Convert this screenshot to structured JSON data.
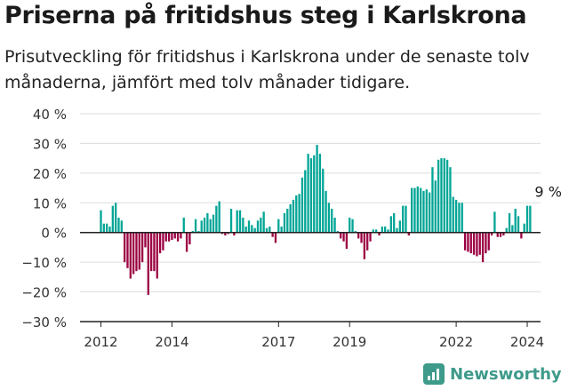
{
  "title": "Priserna på fritidshus steg i Karlskrona",
  "subtitle": "Prisutveckling för fritidshus i Karlskrona under de senaste tolv månaderna, jämfört med tolv månader tidigare.",
  "brand": "Newsworthy",
  "colors": {
    "positive": "#00a596",
    "negative": "#9c0042",
    "brand": "#3e9a8a"
  },
  "chart_data": {
    "type": "bar",
    "ylim": [
      -30,
      40
    ],
    "yticks": [
      "40 %",
      "30 %",
      "20 %",
      "10 %",
      "0 %",
      "−10 %",
      "−20 %",
      "−30 %"
    ],
    "ytick_values": [
      40,
      30,
      20,
      10,
      0,
      -10,
      -20,
      -30
    ],
    "x_start": "2011-09",
    "x_labels": [
      {
        "label": "2012",
        "index": 0
      },
      {
        "label": "2014",
        "index": 24
      },
      {
        "label": "2017",
        "index": 60
      },
      {
        "label": "2019",
        "index": 84
      },
      {
        "label": "2022",
        "index": 120
      },
      {
        "label": "2024",
        "index": 144
      }
    ],
    "annotation": {
      "text": "9 %",
      "index": 152
    },
    "values": [
      7.5,
      3,
      3,
      2,
      9,
      10,
      5,
      4,
      -10,
      -12,
      -15.5,
      -14,
      -13,
      -12.5,
      -10,
      -5,
      -21,
      -13,
      -13,
      -15.5,
      -7,
      -6,
      -3,
      -3,
      -2.5,
      -2,
      -3,
      -2,
      5,
      -6.5,
      -4,
      0.5,
      4.5,
      0.5,
      4,
      5,
      6.5,
      4.5,
      6,
      9,
      10.5,
      -0.5,
      -1,
      -0.5,
      8,
      -1,
      7.5,
      7.5,
      5,
      2,
      4,
      2.5,
      1.5,
      4,
      5,
      7,
      1.5,
      2,
      -1.5,
      -3.5,
      4.5,
      2,
      6.5,
      8,
      9.5,
      11,
      12.5,
      13,
      18.5,
      21,
      26.5,
      25,
      26,
      29.5,
      26.5,
      21.5,
      14,
      10,
      8,
      5,
      0.5,
      -2,
      -3,
      -5.5,
      5,
      4.5,
      0.5,
      -2,
      -3.5,
      -9,
      -6,
      -3,
      1,
      1,
      -1,
      2,
      2,
      1,
      5.5,
      6.5,
      1.5,
      4,
      9,
      9,
      -1,
      15,
      15,
      15.5,
      15,
      14,
      14.5,
      13.5,
      22,
      17.5,
      24.5,
      25,
      25,
      24.5,
      22,
      12,
      11,
      10,
      10,
      -6,
      -6.5,
      -7,
      -7.5,
      -8,
      -7.5,
      -10,
      -7,
      -6,
      -1,
      7,
      -1.5,
      -1.5,
      -1,
      1.5,
      6.5,
      2.5,
      8,
      5.5,
      -2,
      3,
      9,
      9
    ]
  }
}
